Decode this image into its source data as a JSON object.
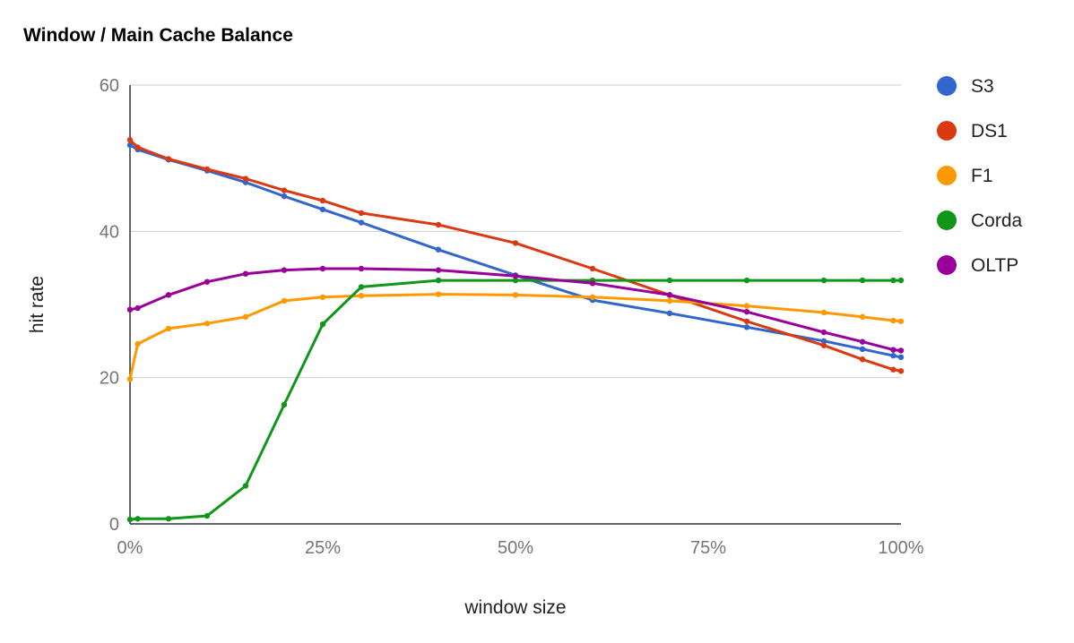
{
  "chart_data": {
    "type": "line",
    "title": "Window / Main Cache Balance",
    "xlabel": "window size",
    "ylabel": "hit rate",
    "xlim": [
      0,
      100
    ],
    "ylim": [
      0,
      60
    ],
    "x_unit": "%",
    "y_ticks": [
      0,
      20,
      40,
      60
    ],
    "x_ticks": [
      0,
      25,
      50,
      75,
      100
    ],
    "x_tick_labels": [
      "0%",
      "25%",
      "50%",
      "75%",
      "100%"
    ],
    "y_tick_labels": [
      "0",
      "20",
      "40",
      "60"
    ],
    "grid": true,
    "legend_position": "right",
    "series": [
      {
        "name": "S3",
        "color": "#3366cc",
        "x": [
          0,
          1,
          5,
          10,
          15,
          20,
          25,
          30,
          40,
          50,
          60,
          70,
          80,
          90,
          95,
          99,
          100
        ],
        "values": [
          51.8,
          51.2,
          49.8,
          48.3,
          46.7,
          44.8,
          43.0,
          41.2,
          37.5,
          34.0,
          30.6,
          28.8,
          26.9,
          25.0,
          23.9,
          23.0,
          22.8
        ]
      },
      {
        "name": "DS1",
        "color": "#dc3912",
        "x": [
          0,
          1,
          5,
          10,
          15,
          20,
          25,
          30,
          40,
          50,
          60,
          70,
          80,
          90,
          95,
          99,
          100
        ],
        "values": [
          52.5,
          51.5,
          49.9,
          48.5,
          47.2,
          45.6,
          44.2,
          42.5,
          40.9,
          38.4,
          34.9,
          31.3,
          27.7,
          24.4,
          22.5,
          21.1,
          20.9
        ]
      },
      {
        "name": "F1",
        "color": "#ff9900",
        "x": [
          0,
          1,
          5,
          10,
          15,
          20,
          25,
          30,
          40,
          50,
          60,
          70,
          80,
          90,
          95,
          99,
          100
        ],
        "values": [
          19.8,
          24.6,
          26.7,
          27.4,
          28.3,
          30.5,
          31.0,
          31.2,
          31.4,
          31.3,
          31.0,
          30.5,
          29.8,
          28.9,
          28.3,
          27.8,
          27.7
        ]
      },
      {
        "name": "Corda",
        "color": "#109618",
        "x": [
          0,
          1,
          5,
          10,
          15,
          20,
          25,
          30,
          40,
          50,
          60,
          70,
          80,
          90,
          95,
          99,
          100
        ],
        "values": [
          0.6,
          0.7,
          0.7,
          1.1,
          5.2,
          16.3,
          27.3,
          32.4,
          33.3,
          33.3,
          33.3,
          33.3,
          33.3,
          33.3,
          33.3,
          33.3,
          33.3
        ]
      },
      {
        "name": "OLTP",
        "color": "#990099",
        "x": [
          0,
          1,
          5,
          10,
          15,
          20,
          25,
          30,
          40,
          50,
          60,
          70,
          80,
          90,
          95,
          99,
          100
        ],
        "values": [
          29.3,
          29.5,
          31.3,
          33.1,
          34.2,
          34.7,
          34.9,
          34.9,
          34.7,
          33.9,
          32.9,
          31.3,
          29.0,
          26.2,
          24.9,
          23.8,
          23.7
        ]
      }
    ]
  }
}
